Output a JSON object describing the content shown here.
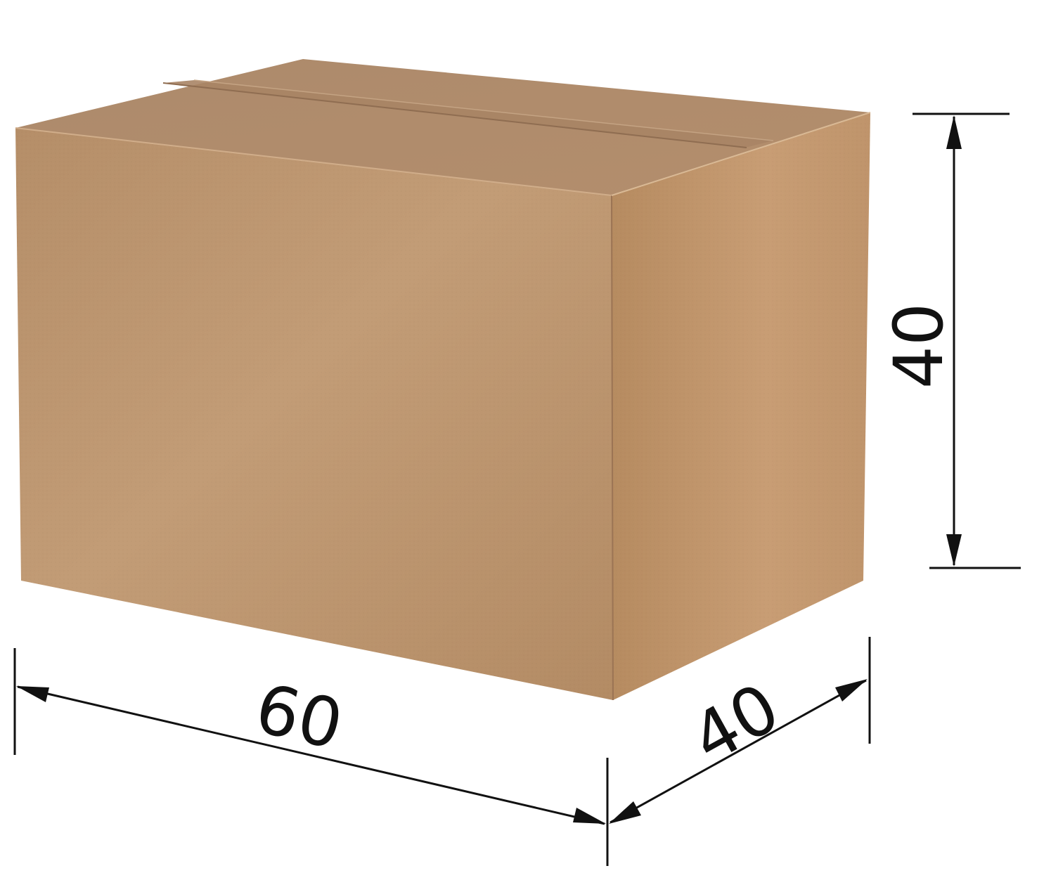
{
  "dimensions": {
    "length": {
      "label": "60"
    },
    "width": {
      "label": "40"
    },
    "height": {
      "label": "40"
    }
  },
  "colors": {
    "box_front": "#b68f69",
    "box_front_light": "#c39b74",
    "box_side": "#b88d63",
    "box_side_light": "#cca179",
    "box_top": "#b08c6c",
    "box_edge": "#9a7656",
    "dimension_ink": "#111111"
  }
}
